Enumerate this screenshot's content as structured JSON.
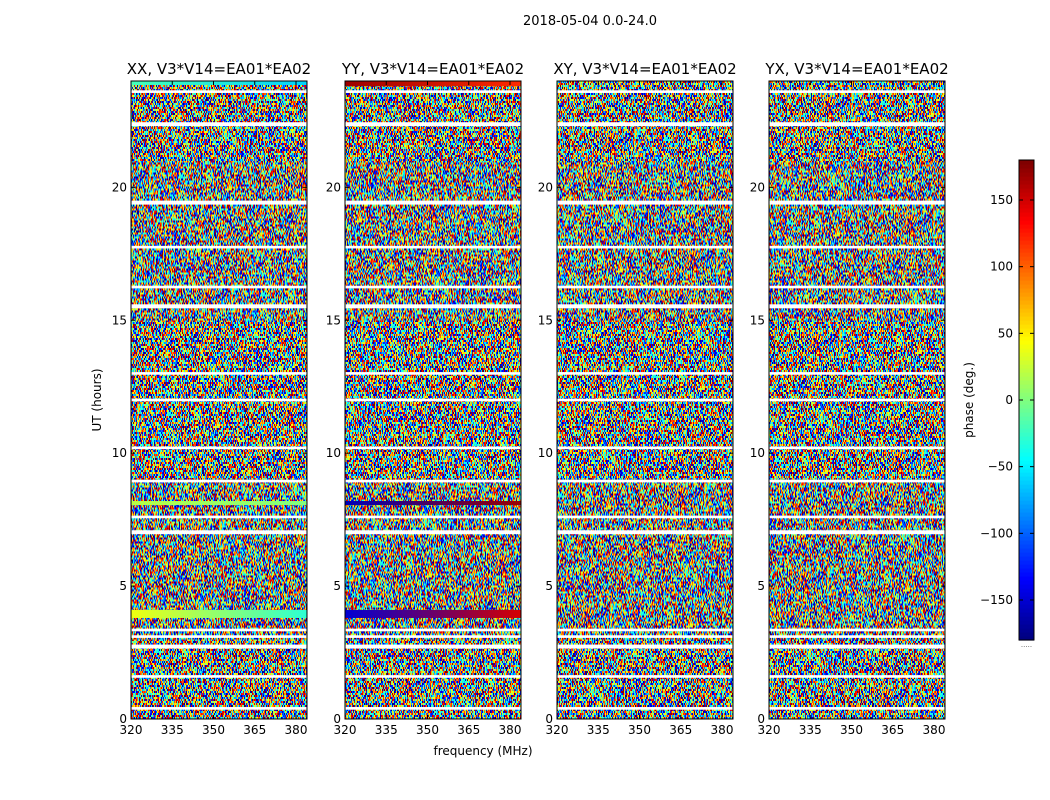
{
  "suptitle": "2018-05-04 0.0-24.0",
  "chart_data": {
    "type": "heatmap",
    "xlabel": "frequency (MHz)",
    "ylabel": "UT (hours)",
    "x_ticks": [
      "320",
      "335",
      "350",
      "365",
      "380"
    ],
    "y_ticks": [
      "0",
      "5",
      "10",
      "15",
      "20"
    ],
    "xlim": [
      320,
      384
    ],
    "ylim": [
      0,
      24
    ],
    "colorbar": {
      "label": "phase (deg.)",
      "ticks": [
        "−150",
        "−100",
        "−50",
        "0",
        "50",
        "100",
        "150"
      ],
      "tick_values": [
        -150,
        -100,
        -50,
        0,
        50,
        100,
        150
      ],
      "range": [
        -180,
        180
      ],
      "colormap": "jet",
      "extension_text": "....."
    },
    "panels": [
      {
        "title": "XX, V3*V14=EA01*EA02",
        "coherent_bands": [
          {
            "t0": 3.8,
            "t1": 4.1,
            "phase_start": 40,
            "phase_end": -30
          },
          {
            "t0": 8.05,
            "t1": 8.2,
            "phase_start": 20,
            "phase_end": 0
          },
          {
            "t0": 23.85,
            "t1": 24.0,
            "phase_start": -20,
            "phase_end": -60
          }
        ]
      },
      {
        "title": "YY, V3*V14=EA01*EA02",
        "coherent_bands": [
          {
            "t0": 3.8,
            "t1": 4.1,
            "phase_start": -150,
            "phase_end": 150
          },
          {
            "t0": 8.05,
            "t1": 8.2,
            "phase_start": -160,
            "phase_end": 170
          },
          {
            "t0": 23.8,
            "t1": 24.0,
            "phase_start": 170,
            "phase_end": 120
          }
        ]
      },
      {
        "title": "XY, V3*V14=EA01*EA02",
        "coherent_bands": []
      },
      {
        "title": "YX, V3*V14=EA01*EA02",
        "coherent_bands": []
      }
    ],
    "flagged_gaps_hours": [
      [
        0.35,
        0.45
      ],
      [
        1.55,
        1.65
      ],
      [
        2.65,
        2.8
      ],
      [
        3.05,
        3.15
      ],
      [
        3.3,
        3.4
      ],
      [
        6.95,
        7.1
      ],
      [
        7.55,
        7.65
      ],
      [
        8.9,
        9.0
      ],
      [
        10.15,
        10.25
      ],
      [
        11.95,
        12.05
      ],
      [
        12.95,
        13.05
      ],
      [
        15.45,
        15.6
      ],
      [
        16.2,
        16.3
      ],
      [
        17.7,
        17.8
      ],
      [
        19.35,
        19.5
      ],
      [
        22.3,
        22.45
      ],
      [
        23.55,
        23.65
      ]
    ]
  }
}
